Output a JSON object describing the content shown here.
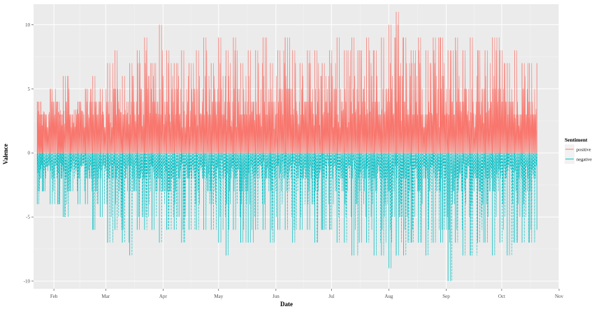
{
  "chart_data": {
    "type": "line",
    "title": "",
    "xlabel": "Date",
    "ylabel": "Valence",
    "x_domain": [
      "2021-01-21",
      "2021-11-01"
    ],
    "ylim": [
      -10.6,
      11.6
    ],
    "x_ticks": [
      {
        "date": "2021-02-01",
        "label": "Feb"
      },
      {
        "date": "2021-03-01",
        "label": "Mar"
      },
      {
        "date": "2021-04-01",
        "label": "Apr"
      },
      {
        "date": "2021-05-01",
        "label": "May"
      },
      {
        "date": "2021-06-01",
        "label": "Jun"
      },
      {
        "date": "2021-07-01",
        "label": "Jul"
      },
      {
        "date": "2021-08-01",
        "label": "Aug"
      },
      {
        "date": "2021-09-01",
        "label": "Sep"
      },
      {
        "date": "2021-10-01",
        "label": "Oct"
      },
      {
        "date": "2021-11-01",
        "label": "Nov"
      }
    ],
    "y_ticks": [
      -10,
      -5,
      0,
      5,
      10
    ],
    "grid": true,
    "legend": {
      "title": "Sentiment",
      "position": "right"
    },
    "series": [
      {
        "name": "positive",
        "color": "#F8766D",
        "x": [
          "2021-01-23",
          "2021-01-26",
          "2021-01-30",
          "2021-02-03",
          "2021-02-06",
          "2021-02-10",
          "2021-02-14",
          "2021-02-18",
          "2021-02-22",
          "2021-02-26",
          "2021-03-02",
          "2021-03-06",
          "2021-03-10",
          "2021-03-14",
          "2021-03-18",
          "2021-03-22",
          "2021-03-26",
          "2021-03-30",
          "2021-04-03",
          "2021-04-07",
          "2021-04-11",
          "2021-04-15",
          "2021-04-19",
          "2021-04-23",
          "2021-04-27",
          "2021-05-01",
          "2021-05-05",
          "2021-05-09",
          "2021-05-13",
          "2021-05-17",
          "2021-05-21",
          "2021-05-25",
          "2021-05-29",
          "2021-06-02",
          "2021-06-06",
          "2021-06-10",
          "2021-06-14",
          "2021-06-18",
          "2021-06-22",
          "2021-06-26",
          "2021-06-30",
          "2021-07-04",
          "2021-07-08",
          "2021-07-12",
          "2021-07-16",
          "2021-07-20",
          "2021-07-24",
          "2021-07-28",
          "2021-08-01",
          "2021-08-05",
          "2021-08-09",
          "2021-08-13",
          "2021-08-17",
          "2021-08-21",
          "2021-08-25",
          "2021-08-29",
          "2021-09-02",
          "2021-09-06",
          "2021-09-10",
          "2021-09-14",
          "2021-09-18",
          "2021-09-22",
          "2021-09-26",
          "2021-09-30",
          "2021-10-04",
          "2021-10-08",
          "2021-10-12",
          "2021-10-16",
          "2021-10-20"
        ],
        "values": [
          4,
          3,
          5,
          4,
          6,
          3,
          4,
          5,
          6,
          5,
          7,
          8,
          6,
          7,
          8,
          9,
          7,
          10,
          8,
          7,
          8,
          7,
          8,
          9,
          7,
          9,
          8,
          9,
          7,
          8,
          8,
          9,
          7,
          8,
          9,
          8,
          7,
          8,
          8,
          7,
          8,
          9,
          8,
          9,
          8,
          9,
          8,
          9,
          10,
          11,
          9,
          8,
          9,
          8,
          9,
          9,
          8,
          9,
          8,
          9,
          8,
          8,
          9,
          8,
          7,
          8,
          7,
          7,
          7
        ]
      },
      {
        "name": "negative",
        "color": "#00BFC4",
        "x": [
          "2021-01-23",
          "2021-01-26",
          "2021-01-30",
          "2021-02-03",
          "2021-02-06",
          "2021-02-10",
          "2021-02-14",
          "2021-02-18",
          "2021-02-22",
          "2021-02-26",
          "2021-03-02",
          "2021-03-06",
          "2021-03-10",
          "2021-03-14",
          "2021-03-18",
          "2021-03-22",
          "2021-03-26",
          "2021-03-30",
          "2021-04-03",
          "2021-04-07",
          "2021-04-11",
          "2021-04-15",
          "2021-04-19",
          "2021-04-23",
          "2021-04-27",
          "2021-05-01",
          "2021-05-05",
          "2021-05-09",
          "2021-05-13",
          "2021-05-17",
          "2021-05-21",
          "2021-05-25",
          "2021-05-29",
          "2021-06-02",
          "2021-06-06",
          "2021-06-10",
          "2021-06-14",
          "2021-06-18",
          "2021-06-22",
          "2021-06-26",
          "2021-06-30",
          "2021-07-04",
          "2021-07-08",
          "2021-07-12",
          "2021-07-16",
          "2021-07-20",
          "2021-07-24",
          "2021-07-28",
          "2021-08-01",
          "2021-08-05",
          "2021-08-09",
          "2021-08-13",
          "2021-08-17",
          "2021-08-21",
          "2021-08-25",
          "2021-08-29",
          "2021-09-02",
          "2021-09-06",
          "2021-09-10",
          "2021-09-14",
          "2021-09-18",
          "2021-09-22",
          "2021-09-26",
          "2021-09-30",
          "2021-10-04",
          "2021-10-08",
          "2021-10-12",
          "2021-10-16",
          "2021-10-20"
        ],
        "values": [
          -4,
          -3,
          -4,
          -4,
          -5,
          -3,
          -4,
          -4,
          -6,
          -5,
          -7,
          -6,
          -7,
          -8,
          -6,
          -6,
          -6,
          -7,
          -6,
          -6,
          -7,
          -6,
          -6,
          -6,
          -6,
          -7,
          -8,
          -6,
          -7,
          -7,
          -6,
          -6,
          -7,
          -6,
          -6,
          -7,
          -6,
          -6,
          -7,
          -6,
          -6,
          -7,
          -7,
          -8,
          -7,
          -7,
          -8,
          -8,
          -9,
          -8,
          -8,
          -7,
          -7,
          -8,
          -7,
          -7,
          -10,
          -7,
          -8,
          -8,
          -7,
          -7,
          -8,
          -7,
          -8,
          -7,
          -7,
          -7,
          -6
        ]
      }
    ]
  }
}
